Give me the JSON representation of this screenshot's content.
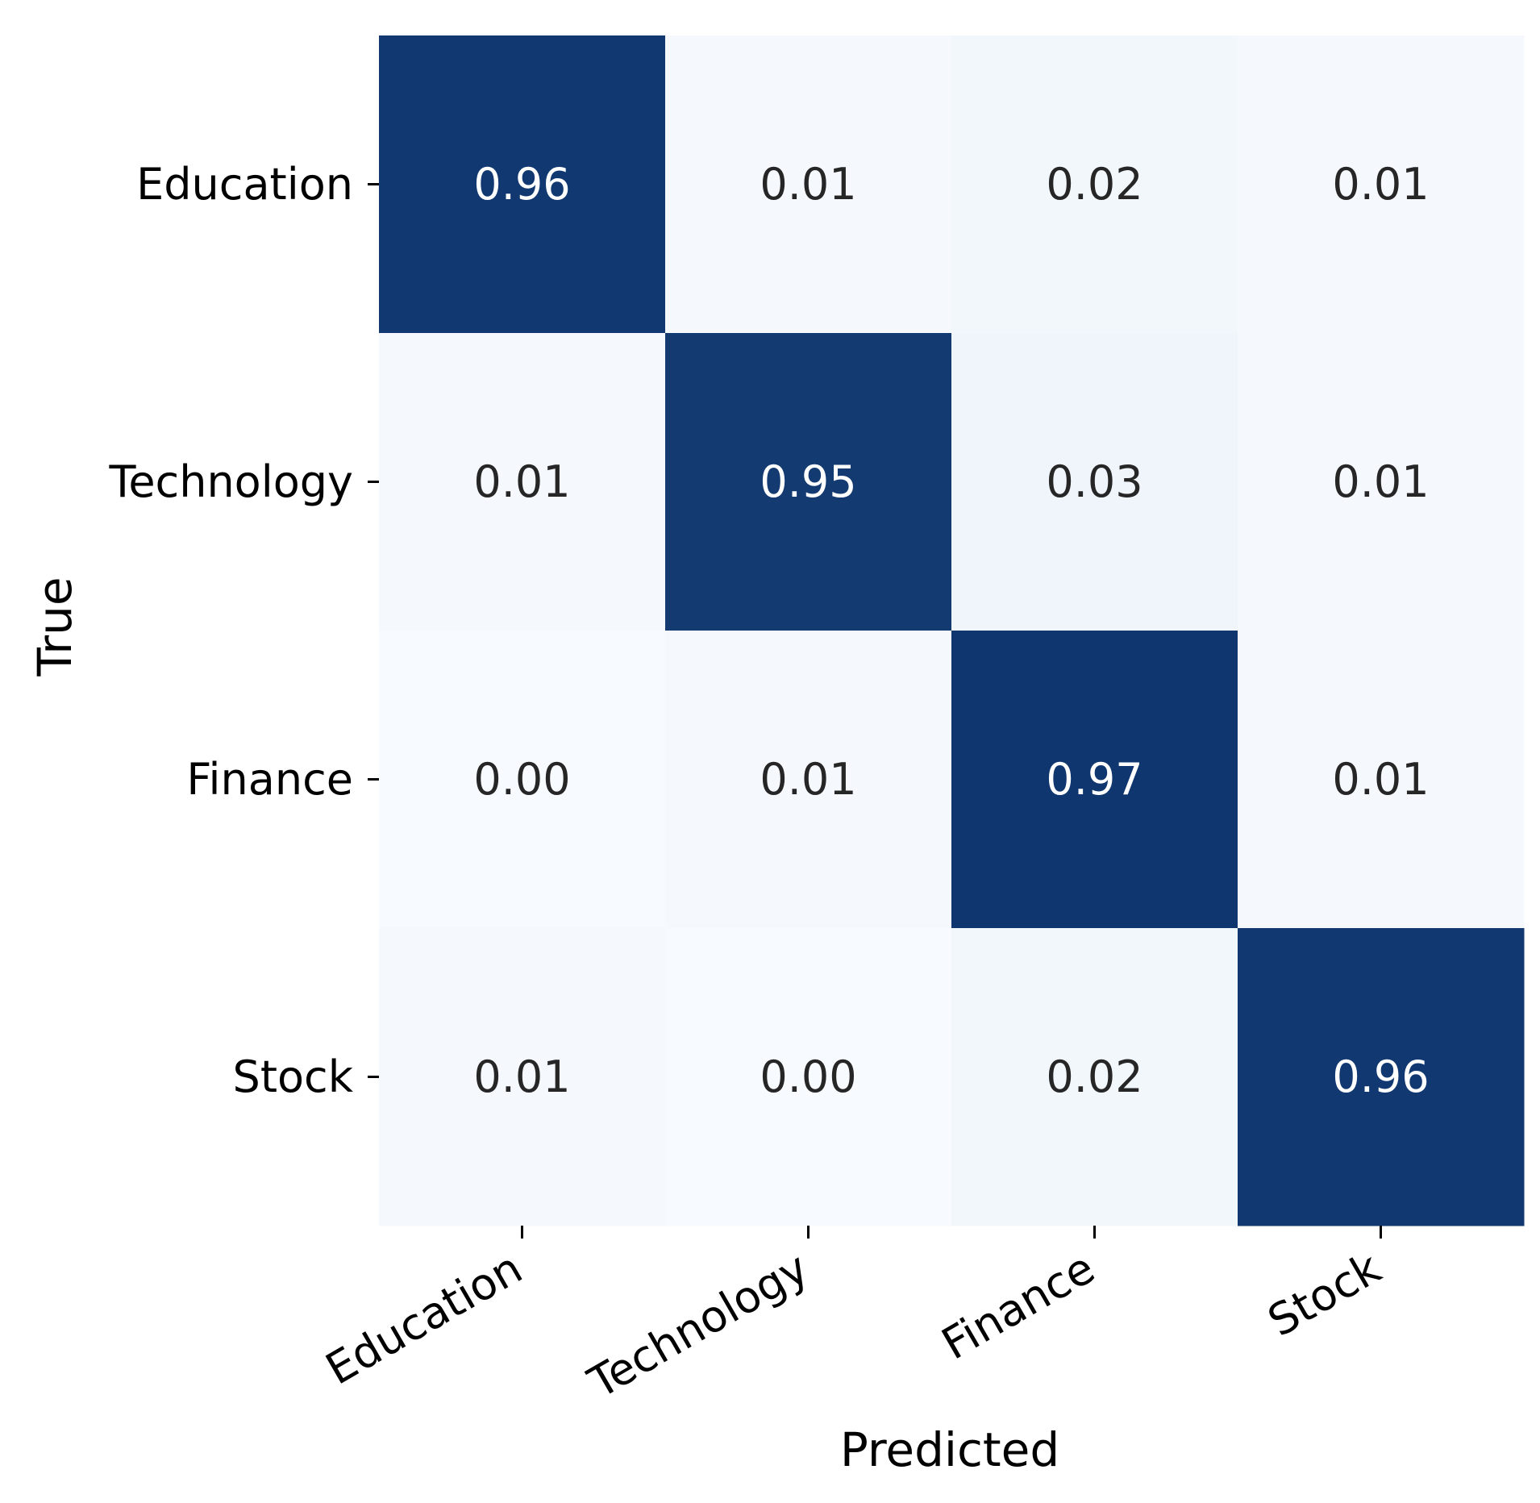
{
  "chart_data": {
    "type": "heatmap",
    "title": "",
    "xlabel": "Predicted",
    "ylabel": "True",
    "x_categories": [
      "Education",
      "Technology",
      "Finance",
      "Stock"
    ],
    "y_categories": [
      "Education",
      "Technology",
      "Finance",
      "Stock"
    ],
    "values": [
      [
        0.96,
        0.01,
        0.02,
        0.01
      ],
      [
        0.01,
        0.95,
        0.03,
        0.01
      ],
      [
        0.0,
        0.01,
        0.97,
        0.01
      ],
      [
        0.01,
        0.0,
        0.02,
        0.96
      ]
    ],
    "value_range": [
      0,
      1
    ],
    "colormap": {
      "name": "Blues",
      "low": "#f7fbff",
      "high": "#08306b"
    },
    "annotation_colors": {
      "light_cell_text": "#262626",
      "dark_cell_text": "#ffffff"
    },
    "x_tick_rotation_deg": 30,
    "colorbar": false,
    "grid": false
  }
}
